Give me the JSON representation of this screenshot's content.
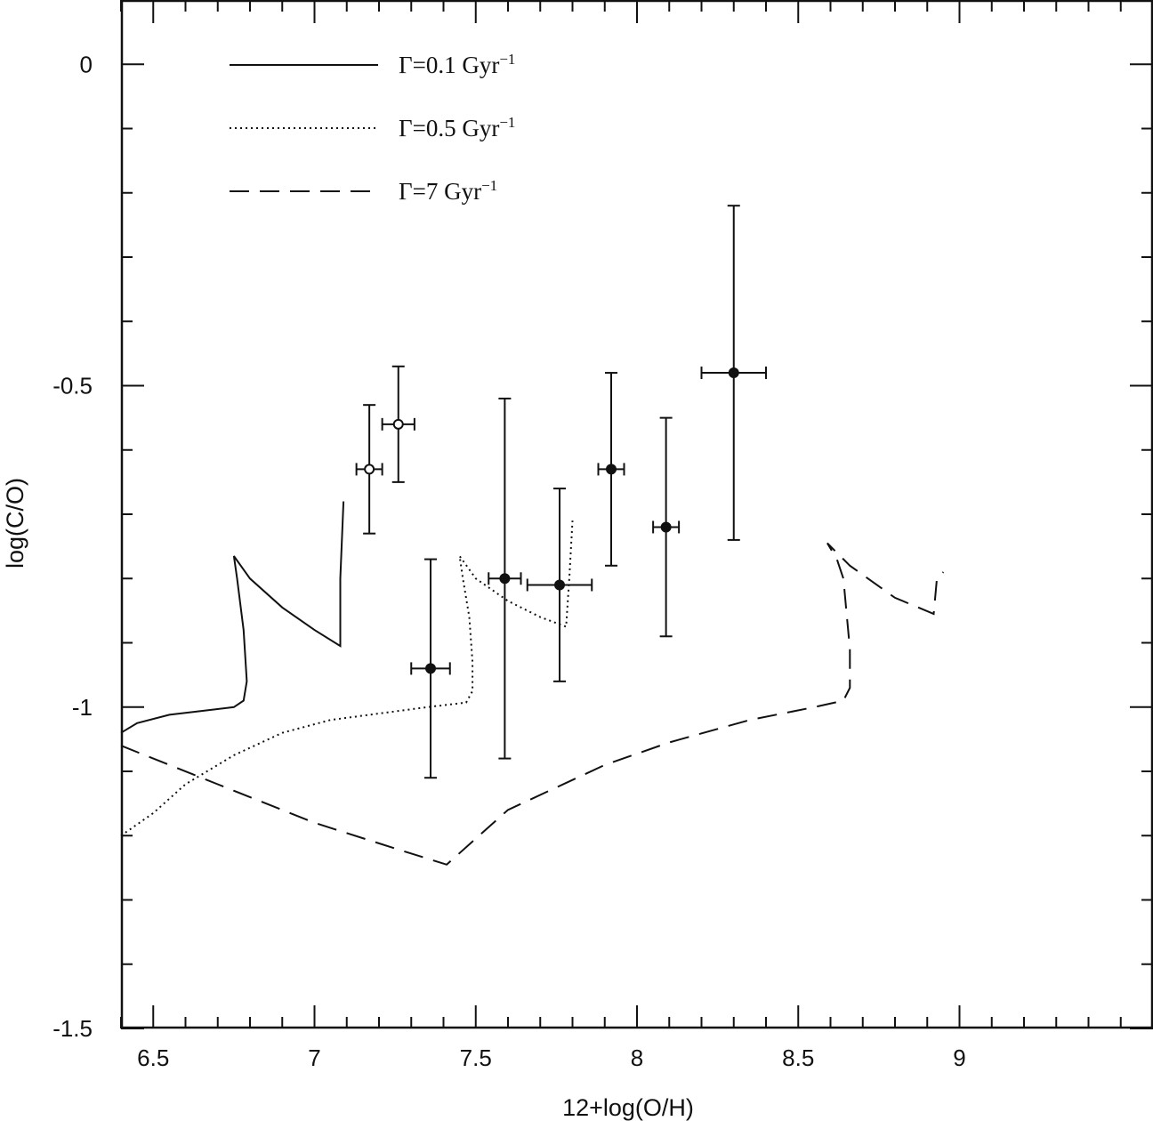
{
  "chart_data": {
    "type": "scatter",
    "title": "",
    "xlabel": "12+log(O/H)",
    "ylabel": "log(C/O)",
    "xlim": [
      6.4,
      9.6
    ],
    "ylim": [
      -1.5,
      0.1
    ],
    "x_ticks": [
      {
        "value": 6.5,
        "label": "6.5"
      },
      {
        "value": 7,
        "label": "7"
      },
      {
        "value": 7.5,
        "label": "7.5"
      },
      {
        "value": 8,
        "label": "8"
      },
      {
        "value": 8.5,
        "label": "8.5"
      },
      {
        "value": 9,
        "label": "9"
      }
    ],
    "y_ticks": [
      {
        "value": 0,
        "label": "0"
      },
      {
        "value": -0.5,
        "label": "-0.5"
      },
      {
        "value": -1,
        "label": "-1"
      },
      {
        "value": -1.5,
        "label": "-1.5"
      }
    ],
    "x_minor_step": 0.1,
    "y_minor_step": 0.1,
    "grid": false,
    "legend_position": "top-left",
    "series": [
      {
        "name": "Γ=0.1 Gyr",
        "name_base": "Γ=0.1  Gyr",
        "name_sup": "−1",
        "type": "line",
        "style": "solid",
        "x": [
          6.4,
          6.45,
          6.55,
          6.65,
          6.75,
          6.78,
          6.79,
          6.78,
          6.76,
          6.75,
          6.8,
          6.9,
          7.0,
          7.08,
          7.08,
          7.09
        ],
        "y": [
          -1.04,
          -1.025,
          -1.012,
          -1.006,
          -1.0,
          -0.99,
          -0.96,
          -0.88,
          -0.8,
          -0.765,
          -0.8,
          -0.845,
          -0.88,
          -0.905,
          -0.8,
          -0.68
        ]
      },
      {
        "name": "Γ=0.5 Gyr",
        "name_base": "Γ=0.5  Gyr",
        "name_sup": "−1",
        "type": "line",
        "style": "dotted",
        "x": [
          6.4,
          6.5,
          6.6,
          6.75,
          6.9,
          7.05,
          7.2,
          7.35,
          7.47,
          7.49,
          7.49,
          7.48,
          7.46,
          7.45,
          7.5,
          7.6,
          7.7,
          7.78,
          7.79,
          7.8
        ],
        "y": [
          -1.2,
          -1.165,
          -1.12,
          -1.075,
          -1.04,
          -1.02,
          -1.01,
          -1.0,
          -0.993,
          -0.975,
          -0.93,
          -0.86,
          -0.8,
          -0.765,
          -0.8,
          -0.835,
          -0.86,
          -0.875,
          -0.8,
          -0.71
        ]
      },
      {
        "name": "Γ=7 Gyr",
        "name_base": "Γ=7  Gyr",
        "name_sup": "−1",
        "type": "line",
        "style": "dashed",
        "x": [
          6.4,
          6.7,
          7.0,
          7.25,
          7.41,
          7.6,
          7.9,
          8.1,
          8.35,
          8.55,
          8.64,
          8.66,
          8.66,
          8.64,
          8.62,
          8.59,
          8.66,
          8.8,
          8.92,
          8.93,
          8.95
        ],
        "y": [
          -1.06,
          -1.12,
          -1.18,
          -1.22,
          -1.245,
          -1.16,
          -1.09,
          -1.055,
          -1.02,
          -1.0,
          -0.99,
          -0.97,
          -0.91,
          -0.8,
          -0.77,
          -0.745,
          -0.78,
          -0.83,
          -0.855,
          -0.8,
          -0.79
        ]
      },
      {
        "name": "",
        "type": "scatter",
        "marker": "filled-circle",
        "points": [
          {
            "x": 7.36,
            "y": -0.94,
            "x_err": 0.06,
            "y_err_low": 0.17,
            "y_err_high": 0.17
          },
          {
            "x": 7.59,
            "y": -0.8,
            "x_err": 0.05,
            "y_err_low": 0.28,
            "y_err_high": 0.28
          },
          {
            "x": 7.76,
            "y": -0.81,
            "x_err": 0.1,
            "y_err_low": 0.15,
            "y_err_high": 0.15
          },
          {
            "x": 7.92,
            "y": -0.63,
            "x_err": 0.04,
            "y_err_low": 0.15,
            "y_err_high": 0.15
          },
          {
            "x": 8.09,
            "y": -0.72,
            "x_err": 0.04,
            "y_err_low": 0.17,
            "y_err_high": 0.17
          },
          {
            "x": 8.3,
            "y": -0.48,
            "x_err": 0.1,
            "y_err_low": 0.26,
            "y_err_high": 0.26
          }
        ]
      },
      {
        "name": "",
        "type": "scatter",
        "marker": "open-circle",
        "points": [
          {
            "x": 7.17,
            "y": -0.63,
            "x_err": 0.04,
            "y_err_low": 0.1,
            "y_err_high": 0.1
          },
          {
            "x": 7.26,
            "y": -0.56,
            "x_err": 0.05,
            "y_err_low": 0.09,
            "y_err_high": 0.09
          }
        ]
      }
    ]
  }
}
